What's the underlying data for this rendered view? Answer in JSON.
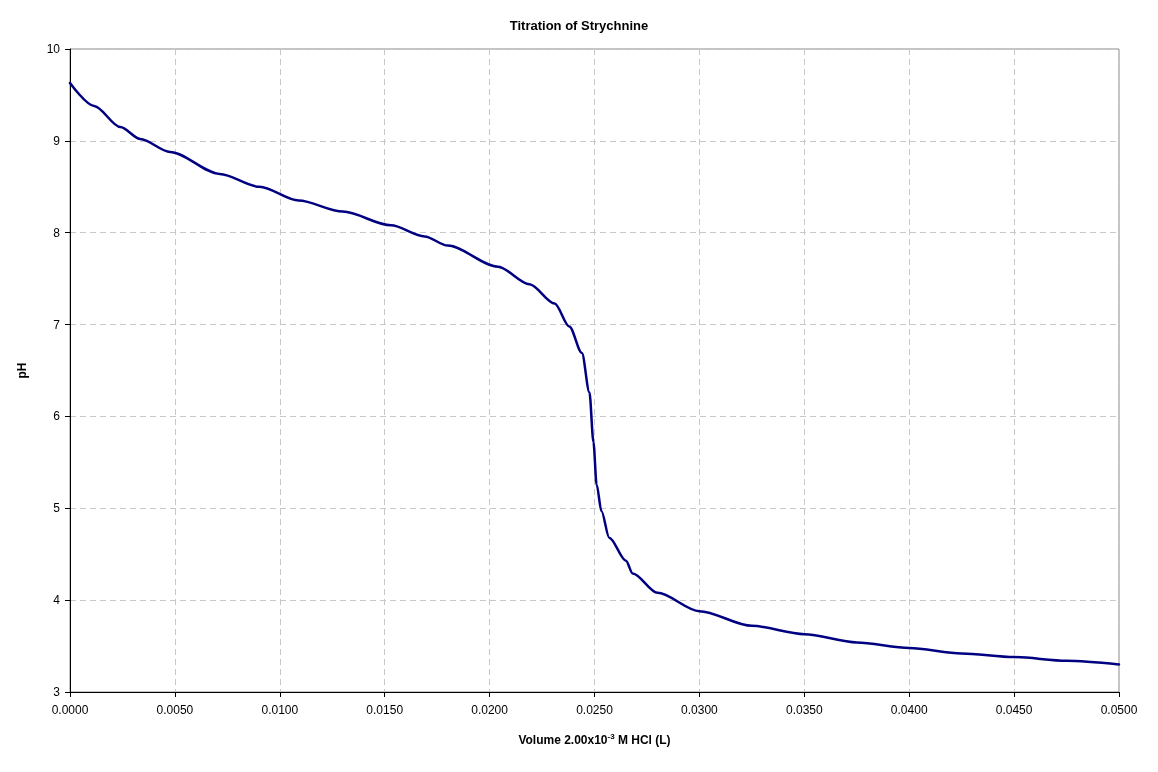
{
  "chart_data": {
    "type": "line",
    "title": "Titration of Strychnine",
    "xlabel": "Volume 2.00x10$^{-3}$ M HCl (L)",
    "ylabel": "pH",
    "x": [
      0,
      0.00115,
      0.0024,
      0.00335,
      0.00477,
      0.00714,
      0.00903,
      0.0109,
      0.013,
      0.0153,
      0.0169,
      0.018,
      0.0204,
      0.0219,
      0.0231,
      0.0238,
      0.0244,
      0.02476,
      0.02495,
      0.0251,
      0.02533,
      0.0257,
      0.0265,
      0.02682,
      0.028,
      0.03,
      0.0325,
      0.035,
      0.0375,
      0.04,
      0.0425,
      0.045,
      0.0475,
      0.05
    ],
    "series": [
      {
        "color": "#000080",
        "values": [
          9.63,
          9.38,
          9.15,
          9.02,
          8.88,
          8.64,
          8.5,
          8.35,
          8.23,
          8.08,
          7.96,
          7.86,
          7.63,
          7.44,
          7.23,
          6.98,
          6.69,
          6.26,
          5.72,
          5.26,
          4.97,
          4.68,
          4.43,
          4.29,
          4.08,
          3.88,
          3.72,
          3.63,
          3.54,
          3.48,
          3.42,
          3.38,
          3.34,
          3.3
        ]
      }
    ],
    "xlim": [
      0,
      0.05
    ],
    "xticks": [
      {
        "value": 0,
        "label": "0.0000"
      },
      {
        "value": 0.005,
        "label": "0.0050"
      },
      {
        "value": 0.01,
        "label": "0.0100"
      },
      {
        "value": 0.015,
        "label": "0.0150"
      },
      {
        "value": 0.02,
        "label": "0.0200"
      },
      {
        "value": 0.025,
        "label": "0.0250"
      },
      {
        "value": 0.03,
        "label": "0.0300"
      },
      {
        "value": 0.035,
        "label": "0.0350"
      },
      {
        "value": 0.04,
        "label": "0.0400"
      },
      {
        "value": 0.045,
        "label": "0.0450"
      },
      {
        "value": 0.05,
        "label": "0.0500"
      }
    ],
    "ylim": [
      3,
      10
    ],
    "yticks": [
      3,
      4,
      5,
      6,
      7,
      8,
      9,
      10
    ],
    "grid": true,
    "marker": "none",
    "line_style": "solid"
  }
}
